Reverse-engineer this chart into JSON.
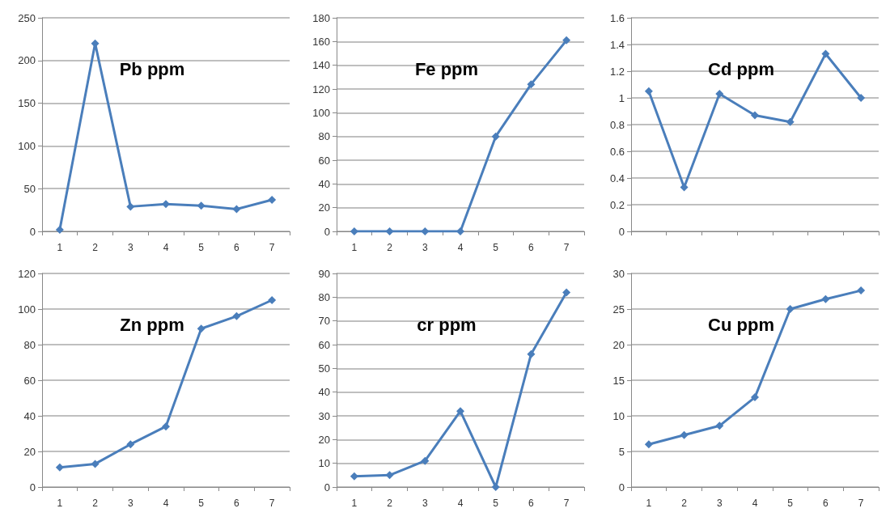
{
  "chart_data": [
    {
      "type": "line",
      "title": "Pb ppm",
      "categories": [
        "1",
        "2",
        "3",
        "4",
        "5",
        "6",
        "7"
      ],
      "series": [
        {
          "color": "#4a7ebb",
          "values": [
            2,
            220,
            29,
            32,
            30,
            26,
            37
          ]
        }
      ],
      "ylim": [
        0,
        250
      ],
      "yticks": [
        0,
        50,
        100,
        150,
        200,
        250
      ],
      "grid": "y",
      "marker": "diamond",
      "line_style": "solid"
    },
    {
      "type": "line",
      "title": "Fe ppm",
      "categories": [
        "1",
        "2",
        "3",
        "4",
        "5",
        "6",
        "7"
      ],
      "series": [
        {
          "color": "#4a7ebb",
          "values": [
            0,
            0,
            0,
            0,
            80,
            124,
            161
          ]
        }
      ],
      "ylim": [
        0,
        180
      ],
      "yticks": [
        0,
        20,
        40,
        60,
        80,
        100,
        120,
        140,
        160,
        180
      ],
      "grid": "y",
      "marker": "diamond",
      "line_style": "solid"
    },
    {
      "type": "line",
      "title": "Cd ppm",
      "categories": [
        "1",
        "2",
        "3",
        "4",
        "5",
        "6",
        "7"
      ],
      "series": [
        {
          "color": "#4a7ebb",
          "values": [
            1.05,
            0.33,
            1.03,
            0.87,
            0.82,
            1.33,
            1.0
          ]
        }
      ],
      "ylim": [
        0,
        1.6
      ],
      "yticks": [
        0,
        0.2,
        0.4,
        0.6,
        0.8,
        1,
        1.2,
        1.4,
        1.6
      ],
      "grid": "y",
      "marker": "diamond",
      "line_style": "solid",
      "tick_labels": "y"
    },
    {
      "type": "line",
      "title": "Zn ppm",
      "categories": [
        "1",
        "2",
        "3",
        "4",
        "5",
        "6",
        "7"
      ],
      "series": [
        {
          "color": "#4a7ebb",
          "values": [
            11,
            13,
            24,
            34,
            89,
            96,
            105
          ]
        }
      ],
      "ylim": [
        0,
        120
      ],
      "yticks": [
        0,
        20,
        40,
        60,
        80,
        100,
        120
      ],
      "grid": "y",
      "marker": "diamond",
      "line_style": "solid"
    },
    {
      "type": "line",
      "title": "cr ppm",
      "categories": [
        "1",
        "2",
        "3",
        "4",
        "5",
        "6",
        "7"
      ],
      "series": [
        {
          "color": "#4a7ebb",
          "values": [
            4.5,
            5,
            11,
            32,
            0,
            56,
            82
          ]
        }
      ],
      "ylim": [
        0,
        90
      ],
      "yticks": [
        0,
        10,
        20,
        30,
        40,
        50,
        60,
        70,
        80,
        90
      ],
      "grid": "y",
      "marker": "diamond",
      "line_style": "solid"
    },
    {
      "type": "line",
      "title": "Cu ppm",
      "categories": [
        "1",
        "2",
        "3",
        "4",
        "5",
        "6",
        "7"
      ],
      "series": [
        {
          "color": "#4a7ebb",
          "values": [
            6,
            7.3,
            8.6,
            12.6,
            25,
            26.4,
            27.6
          ]
        }
      ],
      "ylim": [
        0,
        30
      ],
      "yticks": [
        0,
        5,
        10,
        15,
        20,
        25,
        30
      ],
      "grid": "y",
      "marker": "diamond",
      "line_style": "solid"
    }
  ]
}
